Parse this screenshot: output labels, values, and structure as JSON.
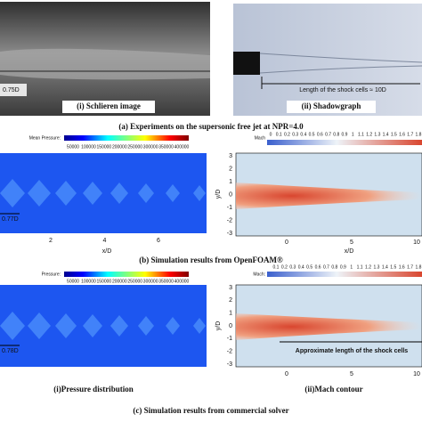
{
  "experiments": {
    "schlieren_caption": "(i) Schlieren image",
    "schlieren_dimension": "0.75D",
    "shadowgraph_caption": "(ii) Shadowgraph",
    "shadowgraph_annotation": "Length of the shock cells ≈ 10D",
    "caption": "(a) Experiments on the supersonic free jet at NPR=4.0"
  },
  "openfoam": {
    "pressure_legend_title": "Mean Pressure:",
    "pressure_ticks": [
      "50000",
      "100000",
      "150000",
      "200000",
      "250000",
      "300000",
      "350000",
      "400000"
    ],
    "pressure_dimension": "0.77D",
    "pressure_xticks": [
      "2",
      "4",
      "6"
    ],
    "pressure_xlabel": "x/D",
    "mach_legend_title": "Mach",
    "mach_ticks": [
      "0",
      "0.1",
      "0.2",
      "0.3",
      "0.4",
      "0.5",
      "0.6",
      "0.7",
      "0.8",
      "0.9",
      "1",
      "1.1",
      "1.2",
      "1.3",
      "1.4",
      "1.5",
      "1.6",
      "1.7",
      "1.8"
    ],
    "mach_yticks": [
      "3",
      "2",
      "1",
      "0",
      "-1",
      "-2",
      "-3"
    ],
    "mach_ylabel": "y/D",
    "mach_xticks": [
      "0",
      "5",
      "10"
    ],
    "mach_xlabel": "x/D",
    "caption": "(b) Simulation results from OpenFOAM®"
  },
  "commercial": {
    "pressure_legend_title": "Pressure:",
    "pressure_ticks": [
      "50000",
      "100000",
      "150000",
      "200000",
      "250000",
      "300000",
      "350000",
      "400000"
    ],
    "pressure_dimension": "0.78D",
    "pressure_caption": "(i)Pressure distribution",
    "mach_legend_title": "Mach:",
    "mach_ticks": [
      "0.1",
      "0.2",
      "0.3",
      "0.4",
      "0.5",
      "0.6",
      "0.7",
      "0.8",
      "0.9",
      "1",
      "1.1",
      "1.2",
      "1.3",
      "1.4",
      "1.5",
      "1.6",
      "1.7",
      "1.8"
    ],
    "mach_yticks": [
      "3",
      "2",
      "1",
      "0",
      "-1",
      "-2",
      "-3"
    ],
    "mach_ylabel": "y/D",
    "mach_xticks": [
      "0",
      "5",
      "10"
    ],
    "mach_annotation": "Approximate length of the shock cells",
    "mach_caption": "(ii)Mach contour",
    "caption": "(c) Simulation results from commercial solver"
  }
}
